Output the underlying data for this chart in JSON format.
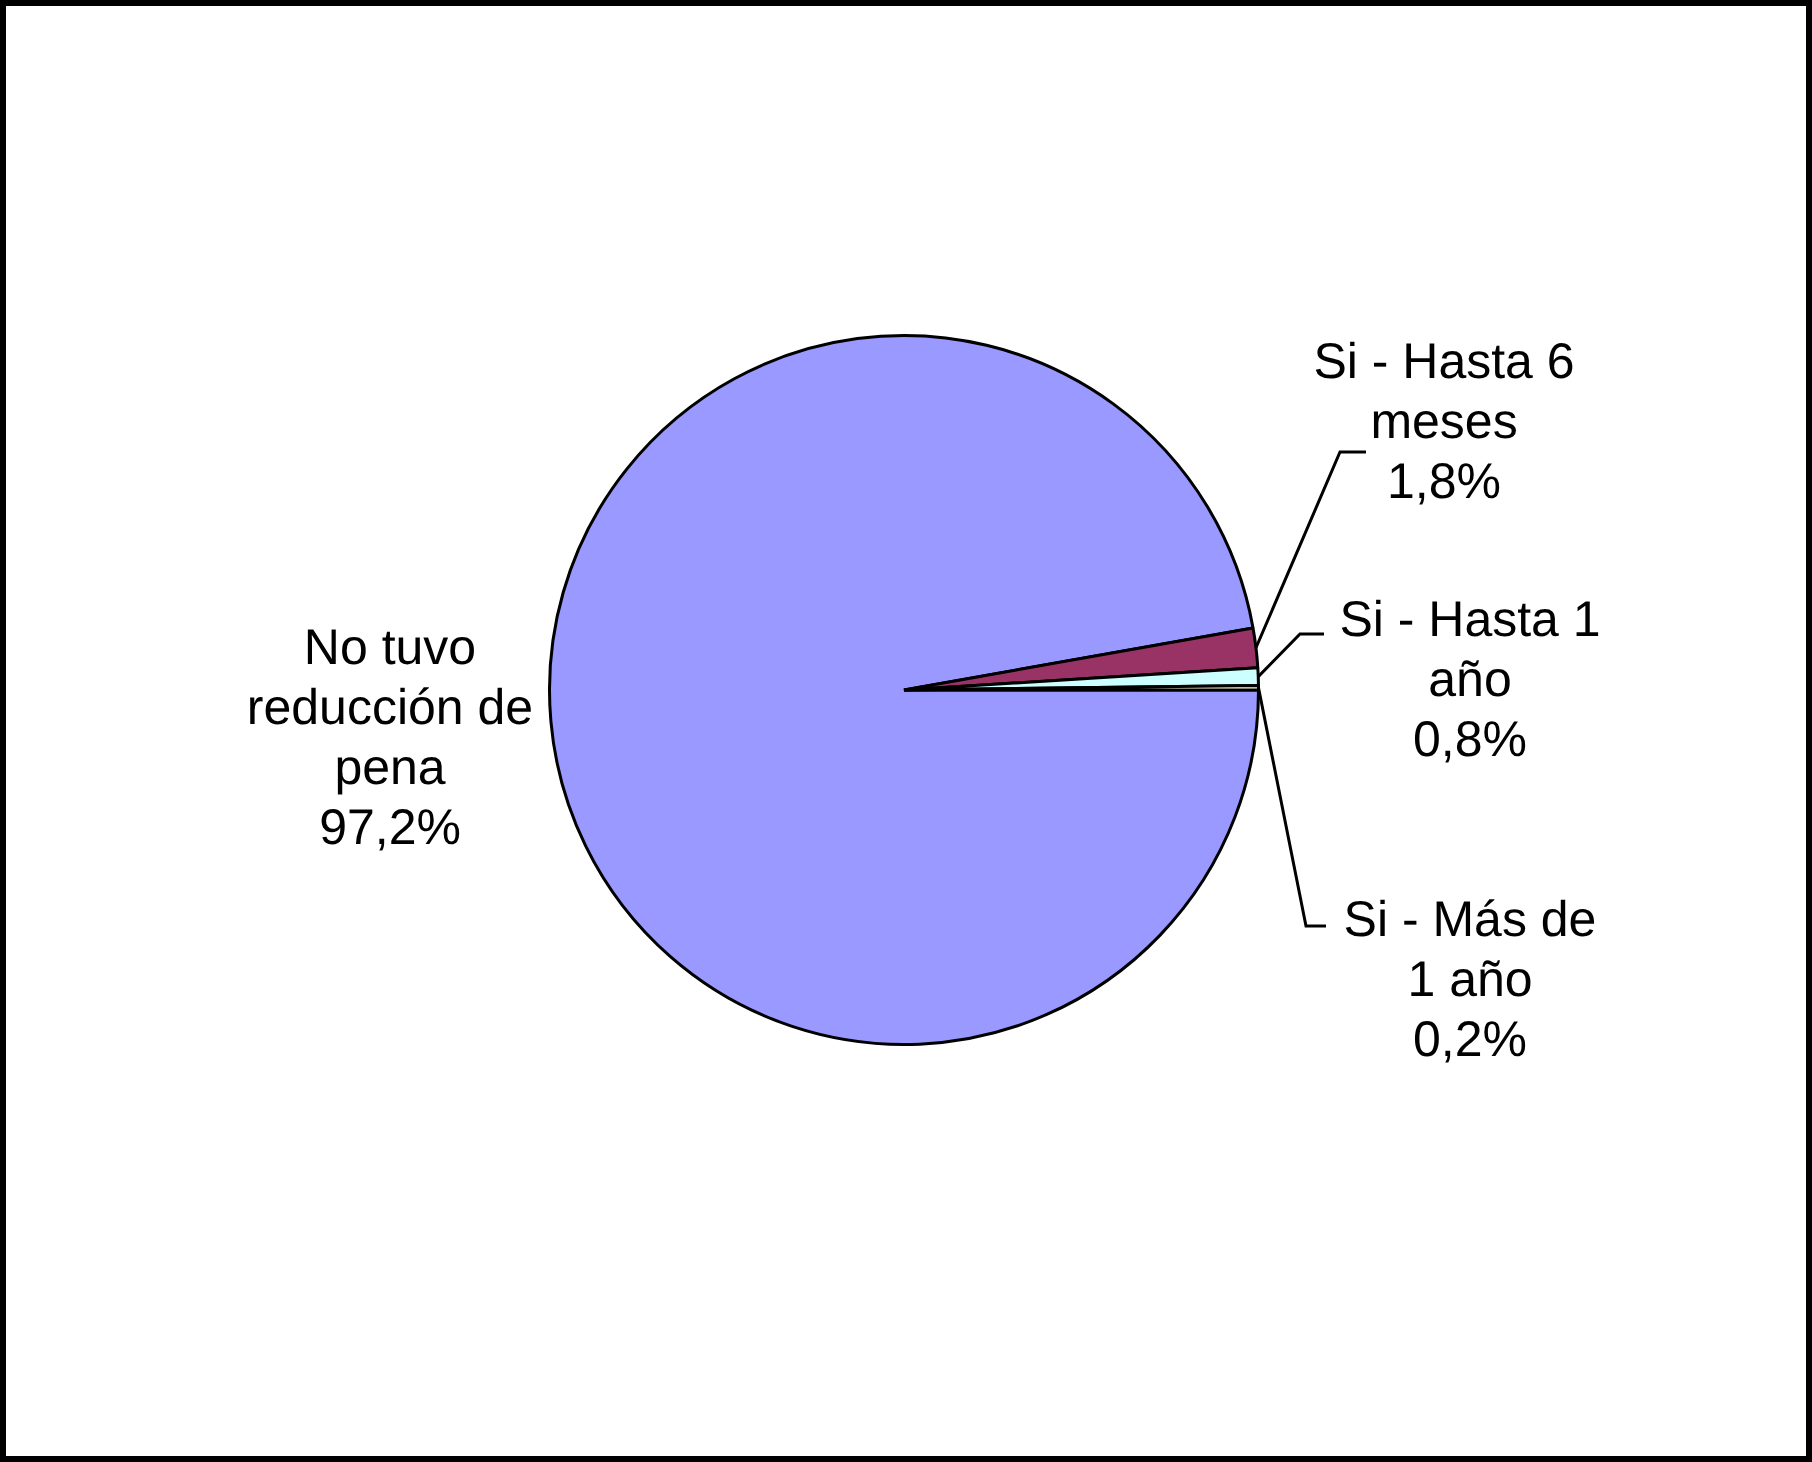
{
  "chart_data": {
    "type": "pie",
    "categories": [
      "No tuvo reducción de pena",
      "Si - Hasta 6 meses",
      "Si - Hasta 1 año",
      "Si - Más de 1 año"
    ],
    "values": [
      97.2,
      1.8,
      0.8,
      0.2
    ],
    "colors": [
      "#9999ff",
      "#993366",
      "#ccffff",
      "#ffffcc"
    ],
    "value_labels": [
      "97,2%",
      "1,8%",
      "0,8%",
      "0,2%"
    ],
    "legend": false
  }
}
